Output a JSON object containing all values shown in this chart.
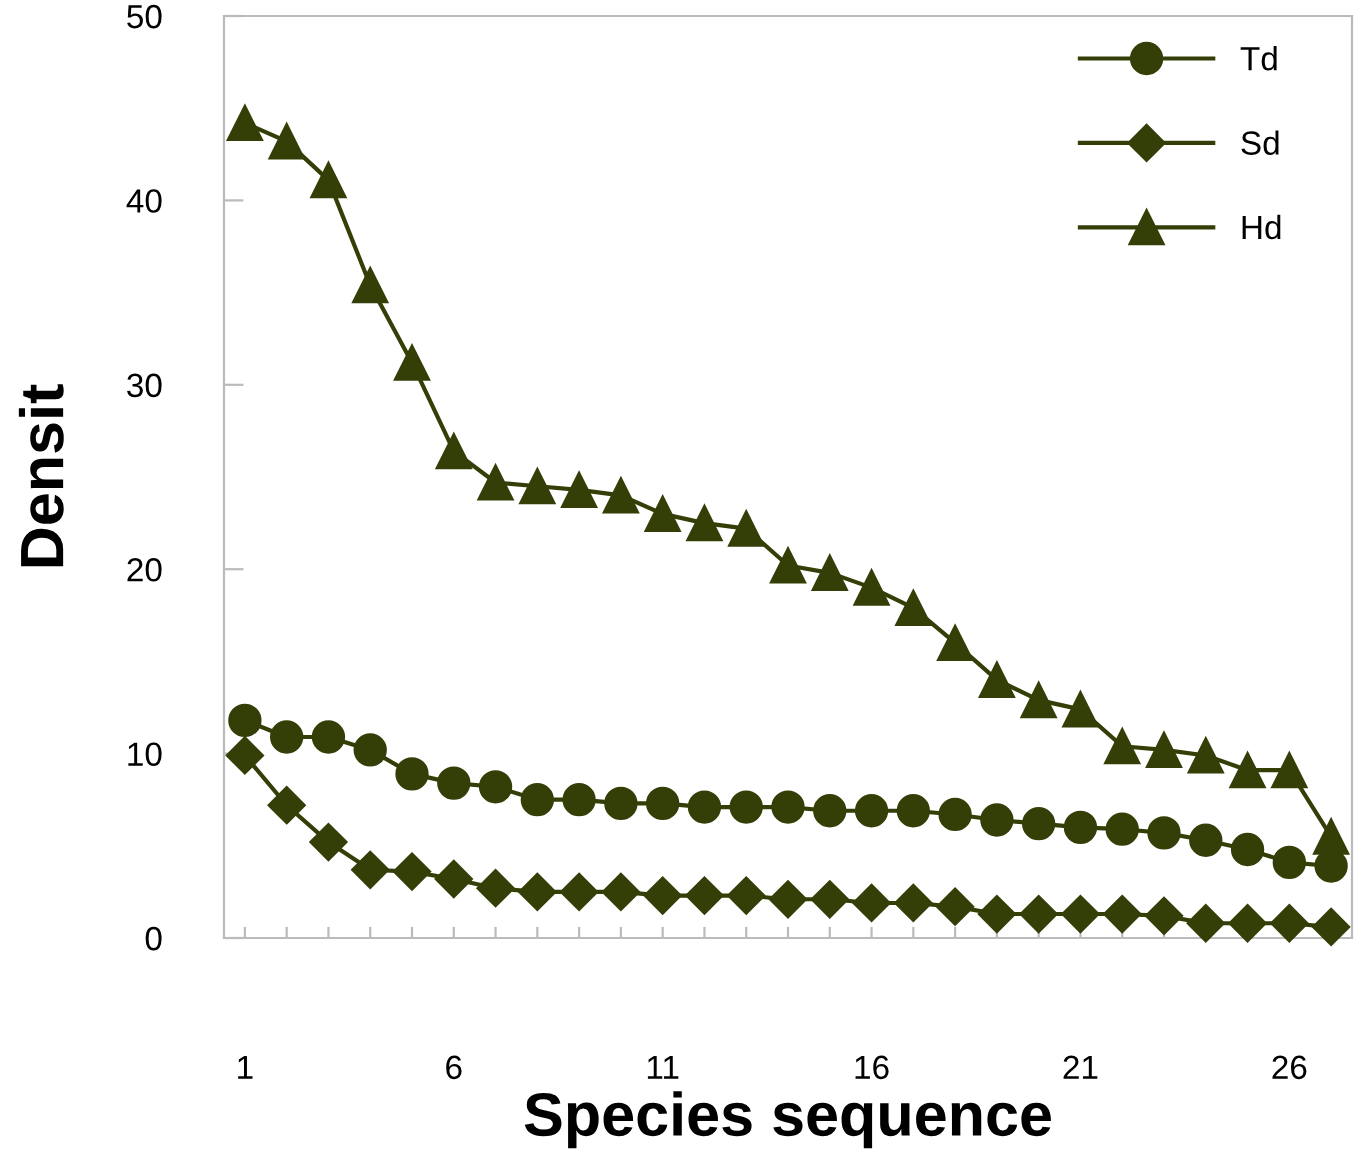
{
  "chart_data": {
    "type": "line",
    "xlabel": "Species sequence",
    "ylabel": "Densit",
    "x": [
      1,
      2,
      3,
      4,
      5,
      6,
      7,
      8,
      9,
      10,
      11,
      12,
      13,
      14,
      15,
      16,
      17,
      18,
      19,
      20,
      21,
      22,
      23,
      24,
      25,
      26,
      27
    ],
    "xlim": [
      0.5,
      27.5
    ],
    "xticks": [
      1,
      {
        "value": 2,
        "label": null
      },
      {
        "value": 3,
        "label": null
      },
      {
        "value": 4,
        "label": null
      },
      {
        "value": 5,
        "label": null
      },
      6,
      {
        "value": 7,
        "label": null
      },
      {
        "value": 8,
        "label": null
      },
      {
        "value": 9,
        "label": null
      },
      {
        "value": 10,
        "label": null
      },
      11,
      {
        "value": 12,
        "label": null
      },
      {
        "value": 13,
        "label": null
      },
      {
        "value": 14,
        "label": null
      },
      {
        "value": 15,
        "label": null
      },
      16,
      {
        "value": 17,
        "label": null
      },
      {
        "value": 18,
        "label": null
      },
      {
        "value": 19,
        "label": null
      },
      {
        "value": 20,
        "label": null
      },
      21,
      {
        "value": 22,
        "label": null
      },
      {
        "value": 23,
        "label": null
      },
      {
        "value": 24,
        "label": null
      },
      {
        "value": 25,
        "label": null
      },
      26,
      {
        "value": 27,
        "label": null
      }
    ],
    "ylim": [
      0,
      50
    ],
    "yticks": [
      0,
      10,
      20,
      30,
      40,
      50
    ],
    "grid": false,
    "legend": "top right",
    "line_style": "solid",
    "series": [
      {
        "name": "Td",
        "color": "#333f07",
        "marker": "circle",
        "values": [
          11.8,
          10.9,
          10.9,
          10.2,
          8.9,
          8.4,
          8.2,
          7.5,
          7.5,
          7.3,
          7.3,
          7.1,
          7.1,
          7.1,
          6.9,
          6.9,
          6.9,
          6.7,
          6.4,
          6.2,
          6.0,
          5.9,
          5.7,
          5.3,
          4.8,
          4.1,
          3.9
        ]
      },
      {
        "name": "Sd",
        "color": "#333f07",
        "marker": "diamond",
        "values": [
          9.9,
          7.2,
          5.2,
          3.7,
          3.6,
          3.2,
          2.7,
          2.5,
          2.5,
          2.5,
          2.3,
          2.3,
          2.3,
          2.1,
          2.1,
          1.9,
          1.9,
          1.7,
          1.3,
          1.3,
          1.3,
          1.3,
          1.2,
          0.8,
          0.8,
          0.8,
          0.6
        ]
      },
      {
        "name": "Hd",
        "color": "#333f07",
        "marker": "triangle",
        "values": [
          44.2,
          43.2,
          41.1,
          35.4,
          31.2,
          26.4,
          24.7,
          24.5,
          24.3,
          24.0,
          23.0,
          22.5,
          22.2,
          20.2,
          19.8,
          19.0,
          17.9,
          16.0,
          14.0,
          12.9,
          12.4,
          10.4,
          10.2,
          9.9,
          9.1,
          9.1,
          5.5
        ]
      }
    ]
  }
}
